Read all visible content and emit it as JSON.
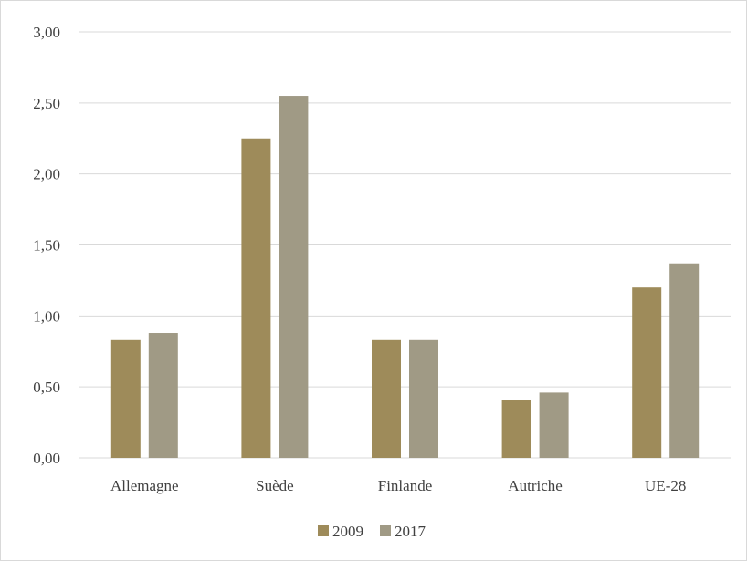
{
  "chart_data": {
    "type": "bar",
    "title": "",
    "xlabel": "",
    "ylabel": "",
    "categories": [
      "Allemagne",
      "Suède",
      "Finlande",
      "Autriche",
      "UE-28"
    ],
    "series": [
      {
        "name": "2009",
        "values": [
          0.83,
          2.25,
          0.83,
          0.41,
          1.2
        ],
        "color": "#9e8b5a"
      },
      {
        "name": "2017",
        "values": [
          0.88,
          2.55,
          0.83,
          0.46,
          1.37
        ],
        "color": "#a09a85"
      }
    ],
    "ylim": [
      0,
      3
    ],
    "yticks": [
      0,
      0.5,
      1,
      1.5,
      2,
      2.5,
      3
    ],
    "ytick_labels": [
      "0,00",
      "0,50",
      "1,00",
      "1,50",
      "2,00",
      "2,50",
      "3,00"
    ],
    "grid": true,
    "legend_position": "bottom-center",
    "gridline_color": "#d9d9d9"
  }
}
